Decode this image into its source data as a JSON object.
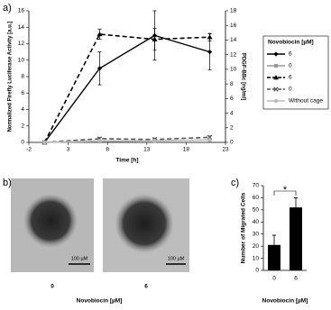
{
  "panel_labels": [
    "a)",
    "b)",
    "c)"
  ],
  "micrographs": {
    "labels": [
      "0",
      "6"
    ],
    "scale_bars": [
      "100 µM",
      "100 µM"
    ],
    "xlabel": "Novobiocin [µM]"
  },
  "chart_data": [
    {
      "type": "line",
      "xlabel": "Time [h]",
      "ylabel": "Normalized Firefly Luciferase Activity [a.u.]",
      "y2label": "PDGF-BBc [ng/ml]",
      "x": [
        0,
        7,
        14,
        21
      ],
      "xlim": [
        -2,
        23
      ],
      "xticks": [
        -2,
        3,
        8,
        13,
        18,
        23
      ],
      "ylim": [
        0,
        16
      ],
      "yticks": [
        0,
        2,
        4,
        6,
        8,
        10,
        12,
        14,
        16
      ],
      "y2lim": [
        0,
        18
      ],
      "y2ticks": [
        0,
        2,
        4,
        6,
        8,
        10,
        12,
        14,
        16,
        18
      ],
      "legend_title": "Novobiocin [µM]",
      "legend": "right",
      "series": [
        {
          "name": "6",
          "color": "#000000",
          "dash": false,
          "marker": "diamond",
          "values": [
            0,
            9,
            13,
            11
          ],
          "errors": [
            0,
            2,
            3,
            2.2
          ]
        },
        {
          "name": "0",
          "color": "#999999",
          "dash": false,
          "marker": "square",
          "values": [
            0,
            0.1,
            0.2,
            0.3
          ],
          "errors": [
            0,
            0.1,
            0.1,
            0.1
          ]
        },
        {
          "name": "6",
          "color": "#000000",
          "dash": true,
          "marker": "triangle",
          "axis": "y2",
          "values": [
            0,
            14.8,
            14.1,
            14.4
          ],
          "errors": [
            0,
            0.7,
            1.5,
            0.5
          ]
        },
        {
          "name": "0",
          "color": "#555555",
          "dash": true,
          "marker": "x",
          "axis": "y2",
          "values": [
            0,
            0.5,
            0.4,
            0.7
          ],
          "errors": [
            0,
            0.2,
            0.2,
            0.2
          ]
        },
        {
          "name": "Without cage",
          "color": "#bbbbbb",
          "dash": false,
          "marker": "circle",
          "values": [
            0,
            0.2,
            0.2,
            0.3
          ],
          "errors": [
            0,
            0.1,
            0.1,
            0.1
          ]
        }
      ]
    },
    {
      "type": "bar",
      "xlabel": "Novobiocin [µM]",
      "ylabel": "Number of Migrated Cells",
      "annotation": "*",
      "categories": [
        "0",
        "6"
      ],
      "values": [
        21,
        52
      ],
      "errors": [
        8,
        8
      ],
      "color": "#000000",
      "ylim": [
        0,
        70
      ],
      "yticks": [
        0,
        10,
        20,
        30,
        40,
        50,
        60,
        70
      ]
    }
  ]
}
